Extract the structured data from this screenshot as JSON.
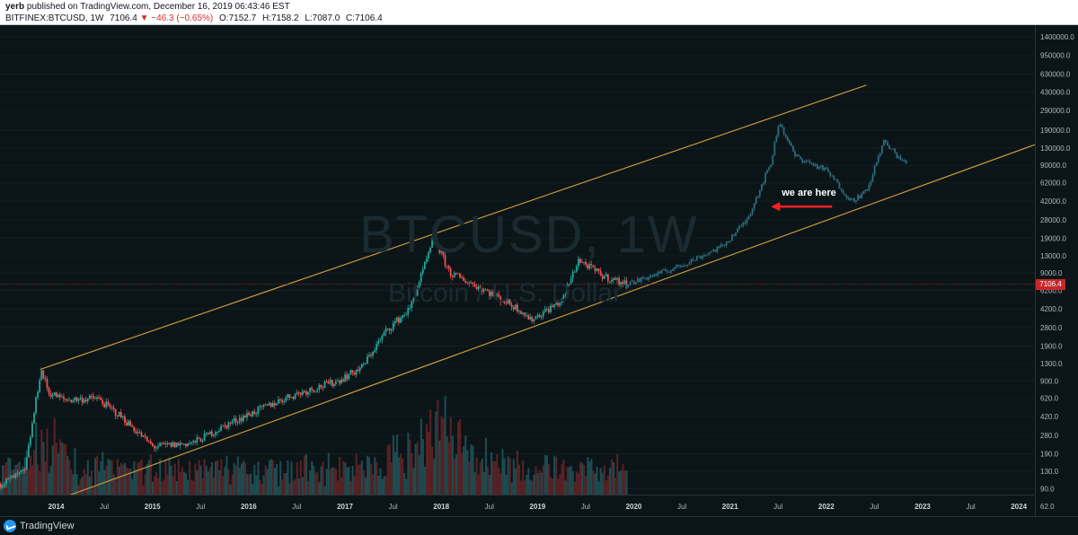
{
  "header": {
    "publisher": "yerb",
    "publish_text": "published on TradingView.com, December 16, 2019 06:43:46 EST",
    "symbol": "BITFINEX:BTCUSD, 1W",
    "last": "7106.4",
    "change": "−46.3 (−0.65%)",
    "open": "O:7152.7",
    "high": "H:7158.2",
    "low": "L:7087.0",
    "close": "C:7106.4"
  },
  "watermark": {
    "main": "BTCUSD, 1W",
    "sub": "Bitcoin / U.S. Dollar"
  },
  "annotation": {
    "text": "we are here",
    "color": "#ff2020"
  },
  "price_axis": {
    "ticks": [
      "1400000.0",
      "950000.0",
      "630000.0",
      "430000.0",
      "290000.0",
      "190000.0",
      "130000.0",
      "90000.0",
      "62000.0",
      "42000.0",
      "28000.0",
      "19000.0",
      "13000.0",
      "9000.0",
      "6200.0",
      "4200.0",
      "2800.0",
      "1900.0",
      "1300.0",
      "900.0",
      "620.0",
      "420.0",
      "280.0",
      "190.0",
      "130.0",
      "90.0",
      "62.0"
    ],
    "last_price_label": "7106.4",
    "last_price_color": "#c62828"
  },
  "time_axis": {
    "labels": [
      {
        "text": "2014",
        "year": true
      },
      {
        "text": "Jul",
        "year": false
      },
      {
        "text": "2015",
        "year": true
      },
      {
        "text": "Jul",
        "year": false
      },
      {
        "text": "2016",
        "year": true
      },
      {
        "text": "Jul",
        "year": false
      },
      {
        "text": "2017",
        "year": true
      },
      {
        "text": "Jul",
        "year": false
      },
      {
        "text": "2018",
        "year": true
      },
      {
        "text": "Jul",
        "year": false
      },
      {
        "text": "2019",
        "year": true
      },
      {
        "text": "Jul",
        "year": false
      },
      {
        "text": "2020",
        "year": true
      },
      {
        "text": "Jul",
        "year": false
      },
      {
        "text": "2021",
        "year": true
      },
      {
        "text": "Jul",
        "year": false
      },
      {
        "text": "2022",
        "year": true
      },
      {
        "text": "Jul",
        "year": false
      },
      {
        "text": "2023",
        "year": true
      },
      {
        "text": "Jul",
        "year": false
      },
      {
        "text": "2024",
        "year": true
      }
    ]
  },
  "colors": {
    "up": "#26a69a",
    "down": "#ef5350",
    "projection": "#2e6b7c",
    "channel": "#c8963c",
    "background": "#0b1518"
  },
  "footer": {
    "brand": "TradingView"
  },
  "chart_data": {
    "type": "line",
    "symbol": "BITFINEX:BTCUSD",
    "interval": "1W",
    "y_scale": "log",
    "ylim": [
      50,
      1800000
    ],
    "xlim": [
      "2013-06",
      "2024-03"
    ],
    "price_history": [
      {
        "date": "2013-06",
        "price": 100
      },
      {
        "date": "2013-09",
        "price": 130
      },
      {
        "date": "2013-11",
        "price": 1150
      },
      {
        "date": "2013-12",
        "price": 700
      },
      {
        "date": "2014-02",
        "price": 600
      },
      {
        "date": "2014-06",
        "price": 620
      },
      {
        "date": "2014-09",
        "price": 420
      },
      {
        "date": "2015-01",
        "price": 220
      },
      {
        "date": "2015-06",
        "price": 240
      },
      {
        "date": "2015-11",
        "price": 380
      },
      {
        "date": "2016-06",
        "price": 650
      },
      {
        "date": "2016-12",
        "price": 900
      },
      {
        "date": "2017-03",
        "price": 1200
      },
      {
        "date": "2017-06",
        "price": 2600
      },
      {
        "date": "2017-09",
        "price": 4200
      },
      {
        "date": "2017-12",
        "price": 19000
      },
      {
        "date": "2018-02",
        "price": 9000
      },
      {
        "date": "2018-06",
        "price": 6500
      },
      {
        "date": "2018-11",
        "price": 4000
      },
      {
        "date": "2018-12",
        "price": 3300
      },
      {
        "date": "2019-04",
        "price": 5000
      },
      {
        "date": "2019-06",
        "price": 12000
      },
      {
        "date": "2019-09",
        "price": 8500
      },
      {
        "date": "2019-12",
        "price": 7106.4
      }
    ],
    "projection": [
      {
        "date": "2019-12",
        "price": 7100
      },
      {
        "date": "2020-06",
        "price": 10000
      },
      {
        "date": "2020-12",
        "price": 16000
      },
      {
        "date": "2021-03",
        "price": 28000
      },
      {
        "date": "2021-06",
        "price": 95000
      },
      {
        "date": "2021-07",
        "price": 230000
      },
      {
        "date": "2021-09",
        "price": 110000
      },
      {
        "date": "2022-01",
        "price": 80000
      },
      {
        "date": "2022-04",
        "price": 42000
      },
      {
        "date": "2022-06",
        "price": 52000
      },
      {
        "date": "2022-08",
        "price": 150000
      },
      {
        "date": "2022-11",
        "price": 90000
      }
    ],
    "channel_upper": [
      {
        "date": "2013-11",
        "price": 1150
      },
      {
        "date": "2022-06",
        "price": 500000
      }
    ],
    "channel_lower": [
      {
        "date": "2013-09",
        "price": 55
      },
      {
        "date": "2024-03",
        "price": 140000
      }
    ],
    "annotations": [
      {
        "text": "we are here",
        "date": "2021-07",
        "price": 38000
      }
    ],
    "last_price": 7106.4
  }
}
